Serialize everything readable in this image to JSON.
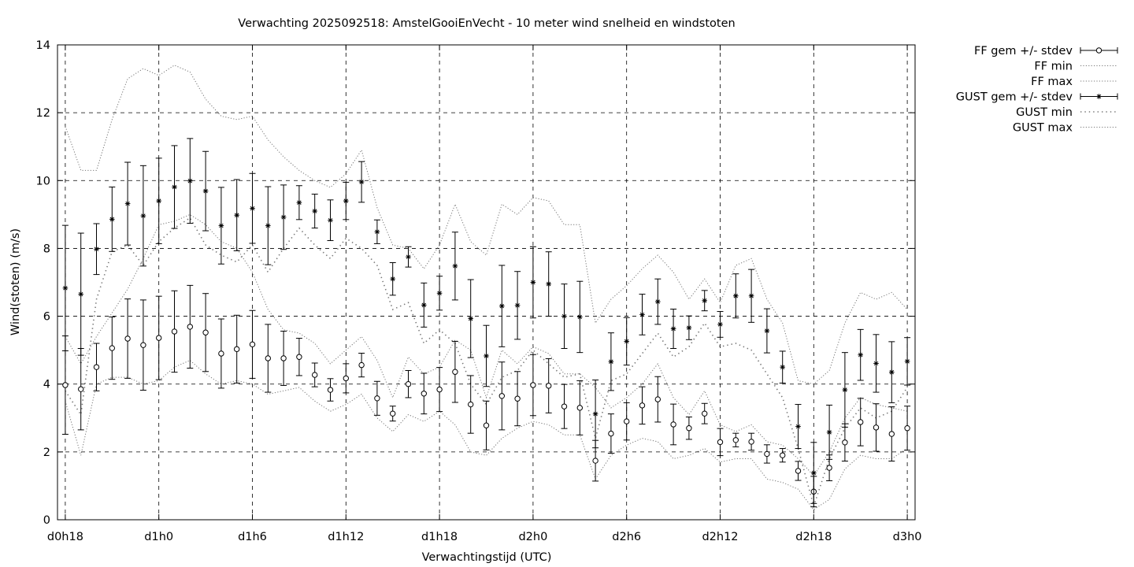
{
  "chart_data": {
    "type": "line",
    "title": "Verwachting 2025092518: AmstelGooiEnVecht - 10 meter wind snelheid en windstoten",
    "xlabel": "Verwachtingstijd (UTC)",
    "ylabel": "Wind(stoten) (m/s)",
    "x_unit": "hours since d0h0",
    "xlim": [
      17.5,
      72.5
    ],
    "ylim": [
      0,
      14
    ],
    "grid": true,
    "legend_position": "outside-right",
    "xticks": [
      {
        "x": 18,
        "label": "d0h18"
      },
      {
        "x": 24,
        "label": "d1h0"
      },
      {
        "x": 30,
        "label": "d1h6"
      },
      {
        "x": 36,
        "label": "d1h12"
      },
      {
        "x": 42,
        "label": "d1h18"
      },
      {
        "x": 48,
        "label": "d2h0"
      },
      {
        "x": 54,
        "label": "d2h6"
      },
      {
        "x": 60,
        "label": "d2h12"
      },
      {
        "x": 66,
        "label": "d2h18"
      },
      {
        "x": 72,
        "label": "d3h0"
      }
    ],
    "yticks": [
      0,
      2,
      4,
      6,
      8,
      10,
      12,
      14
    ],
    "x": [
      18,
      19,
      20,
      21,
      22,
      23,
      24,
      25,
      26,
      27,
      28,
      29,
      30,
      31,
      32,
      33,
      34,
      35,
      36,
      37,
      38,
      39,
      40,
      41,
      42,
      43,
      44,
      45,
      46,
      47,
      48,
      49,
      50,
      51,
      52,
      53,
      54,
      55,
      56,
      57,
      58,
      59,
      60,
      61,
      62,
      63,
      64,
      65,
      66,
      67,
      68,
      69,
      70,
      71,
      72
    ],
    "series": [
      {
        "name": "FF gem +/- stdev",
        "style": "errorbars-circle",
        "mean": [
          3.97,
          3.85,
          4.5,
          5.06,
          5.34,
          5.15,
          5.36,
          5.55,
          5.69,
          5.52,
          4.9,
          5.03,
          5.17,
          4.76,
          4.76,
          4.8,
          4.27,
          3.83,
          4.17,
          4.56,
          3.58,
          3.13,
          4.0,
          3.72,
          3.84,
          4.36,
          3.4,
          2.78,
          3.65,
          3.57,
          3.97,
          3.95,
          3.34,
          3.3,
          1.74,
          2.54,
          2.9,
          3.37,
          3.55,
          2.81,
          2.7,
          3.13,
          2.29,
          2.35,
          2.3,
          1.94,
          1.9,
          1.44,
          0.83,
          1.53,
          2.28,
          2.88,
          2.72,
          2.53,
          2.7
        ],
        "sd": [
          1.45,
          1.2,
          0.7,
          0.92,
          1.17,
          1.33,
          1.23,
          1.2,
          1.22,
          1.15,
          1.02,
          1.0,
          1.0,
          1.0,
          0.8,
          0.55,
          0.35,
          0.33,
          0.43,
          0.35,
          0.5,
          0.22,
          0.4,
          0.6,
          0.65,
          0.9,
          0.85,
          0.72,
          1.0,
          0.8,
          0.9,
          0.8,
          0.65,
          0.8,
          0.6,
          0.58,
          0.55,
          0.55,
          0.67,
          0.6,
          0.33,
          0.3,
          0.4,
          0.2,
          0.25,
          0.27,
          0.2,
          0.28,
          0.45,
          0.38,
          0.55,
          0.7,
          0.7,
          0.8,
          0.65
        ]
      },
      {
        "name": "FF min",
        "style": "dotted",
        "values": [
          3.5,
          1.9,
          4.0,
          4.2,
          4.2,
          4.0,
          4.1,
          4.5,
          4.7,
          4.3,
          4.0,
          4.1,
          4.0,
          3.7,
          3.8,
          3.9,
          3.5,
          3.2,
          3.4,
          3.7,
          3.0,
          2.6,
          3.1,
          2.9,
          3.2,
          2.8,
          2.0,
          1.9,
          2.4,
          2.7,
          2.9,
          2.8,
          2.5,
          2.5,
          1.2,
          1.9,
          2.2,
          2.4,
          2.3,
          1.8,
          1.9,
          2.1,
          1.7,
          1.8,
          1.8,
          1.2,
          1.1,
          0.9,
          0.3,
          0.6,
          1.5,
          1.9,
          1.8,
          1.8,
          2.1
        ]
      },
      {
        "name": "FF max",
        "style": "dotted",
        "values": [
          5.4,
          4.6,
          5.4,
          6.1,
          6.8,
          7.7,
          8.7,
          8.8,
          9.0,
          8.7,
          8.2,
          8.0,
          7.3,
          6.2,
          5.6,
          5.5,
          5.2,
          4.6,
          5.0,
          5.4,
          4.7,
          3.6,
          4.8,
          4.3,
          4.5,
          5.3,
          5.0,
          3.6,
          5.0,
          4.6,
          5.1,
          4.9,
          4.3,
          4.3,
          3.9,
          3.3,
          3.6,
          4.0,
          4.6,
          3.6,
          3.1,
          3.8,
          2.8,
          2.6,
          2.8,
          2.3,
          2.2,
          1.8,
          1.3,
          2.0,
          3.0,
          3.6,
          3.4,
          3.3,
          3.2
        ]
      },
      {
        "name": "GUST gem +/- stdev",
        "style": "errorbars-star",
        "mean": [
          6.83,
          6.65,
          7.98,
          8.86,
          9.32,
          8.96,
          9.4,
          9.81,
          9.99,
          9.69,
          8.67,
          8.98,
          9.18,
          8.67,
          8.92,
          9.35,
          9.1,
          8.83,
          9.4,
          9.96,
          8.49,
          7.1,
          7.75,
          6.33,
          6.68,
          7.48,
          5.93,
          4.83,
          6.3,
          6.32,
          7.0,
          6.95,
          6.0,
          5.98,
          3.12,
          4.66,
          5.26,
          6.05,
          6.43,
          5.63,
          5.66,
          6.46,
          5.76,
          6.6,
          6.6,
          5.57,
          4.5,
          2.75,
          1.38,
          2.58,
          3.83,
          4.86,
          4.61,
          4.35,
          4.67
        ],
        "sd": [
          1.85,
          1.8,
          0.75,
          0.95,
          1.22,
          1.48,
          1.26,
          1.22,
          1.25,
          1.17,
          1.13,
          1.05,
          1.03,
          1.15,
          0.95,
          0.5,
          0.5,
          0.6,
          0.55,
          0.6,
          0.35,
          0.48,
          0.3,
          0.65,
          0.5,
          1.0,
          1.15,
          0.9,
          1.2,
          1.0,
          1.05,
          0.95,
          0.95,
          1.05,
          1.0,
          0.85,
          0.7,
          0.6,
          0.67,
          0.58,
          0.35,
          0.3,
          0.38,
          0.65,
          0.78,
          0.65,
          0.47,
          0.65,
          0.9,
          0.8,
          1.1,
          0.75,
          0.85,
          0.9,
          0.7
        ]
      },
      {
        "name": "GUST min",
        "style": "dotted-coarse",
        "values": [
          3.8,
          3.1,
          6.5,
          7.9,
          8.1,
          7.5,
          8.2,
          8.6,
          8.9,
          8.1,
          7.8,
          7.6,
          8.1,
          7.3,
          8.0,
          8.6,
          8.1,
          7.7,
          8.3,
          8.0,
          7.5,
          6.2,
          6.4,
          5.2,
          5.6,
          5.2,
          4.0,
          3.4,
          4.2,
          4.4,
          5.0,
          4.6,
          4.2,
          4.3,
          2.4,
          4.1,
          4.3,
          4.9,
          5.5,
          4.8,
          5.1,
          5.8,
          5.1,
          5.2,
          5.0,
          4.3,
          3.6,
          2.1,
          0.4,
          1.8,
          2.7,
          3.3,
          3.0,
          3.2,
          3.9
        ]
      },
      {
        "name": "GUST max",
        "style": "dotted",
        "values": [
          11.6,
          10.3,
          10.3,
          11.8,
          13.0,
          13.3,
          13.1,
          13.4,
          13.2,
          12.4,
          11.9,
          11.8,
          11.9,
          11.2,
          10.7,
          10.3,
          10.0,
          9.8,
          10.2,
          10.9,
          9.2,
          8.1,
          8.0,
          7.4,
          8.1,
          9.3,
          8.2,
          7.8,
          9.3,
          9.0,
          9.5,
          9.4,
          8.7,
          8.7,
          5.8,
          6.5,
          6.9,
          7.4,
          7.8,
          7.3,
          6.5,
          7.1,
          6.4,
          7.5,
          7.7,
          6.5,
          5.8,
          4.1,
          4.0,
          4.4,
          5.8,
          6.7,
          6.5,
          6.7,
          6.2
        ]
      }
    ]
  }
}
